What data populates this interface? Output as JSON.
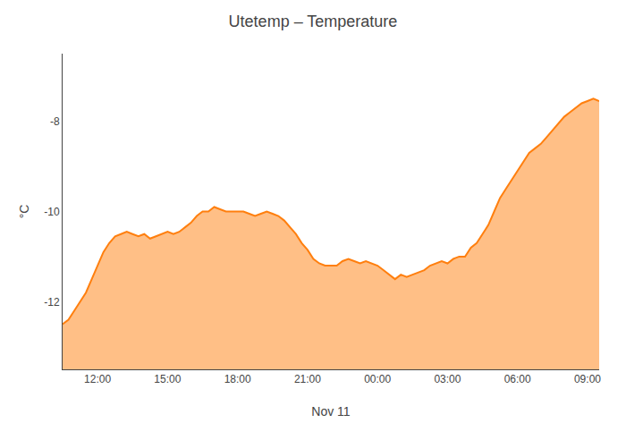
{
  "chart_data": {
    "type": "area",
    "title": "Utetemp – Temperature",
    "xlabel": "Nov 11",
    "ylabel": "°C",
    "x": [
      0.0,
      0.25,
      0.5,
      0.75,
      1.0,
      1.25,
      1.5,
      1.75,
      2.0,
      2.25,
      2.5,
      2.75,
      3.0,
      3.25,
      3.5,
      3.75,
      4.0,
      4.25,
      4.5,
      4.75,
      5.0,
      5.25,
      5.5,
      5.75,
      6.0,
      6.25,
      6.5,
      6.75,
      7.0,
      7.25,
      7.5,
      7.75,
      8.0,
      8.25,
      8.5,
      8.75,
      9.0,
      9.25,
      9.5,
      9.75,
      10.0,
      10.25,
      10.5,
      10.75,
      11.0,
      11.25,
      11.5,
      11.75,
      12.0,
      12.25,
      12.5,
      12.75,
      13.0,
      13.25,
      13.5,
      13.75,
      14.0,
      14.25,
      14.5,
      14.75,
      15.0,
      15.25,
      15.5,
      15.75,
      16.0,
      16.25,
      16.5,
      16.75,
      17.0,
      17.25,
      17.5,
      17.75,
      18.0,
      18.25,
      18.5,
      18.75,
      19.0,
      19.25,
      19.5,
      19.75,
      20.0,
      20.25,
      20.5,
      20.75,
      21.0,
      21.25,
      21.5,
      21.75,
      22.0,
      22.25,
      22.5,
      22.75,
      23.0
    ],
    "values": [
      -12.5,
      -12.4,
      -12.2,
      -12.0,
      -11.8,
      -11.5,
      -11.2,
      -10.9,
      -10.7,
      -10.55,
      -10.5,
      -10.45,
      -10.5,
      -10.55,
      -10.5,
      -10.6,
      -10.55,
      -10.5,
      -10.45,
      -10.5,
      -10.45,
      -10.35,
      -10.25,
      -10.1,
      -10.0,
      -10.0,
      -9.9,
      -9.95,
      -10.0,
      -10.0,
      -10.0,
      -10.0,
      -10.05,
      -10.1,
      -10.05,
      -10.0,
      -10.05,
      -10.1,
      -10.2,
      -10.35,
      -10.5,
      -10.7,
      -10.85,
      -11.05,
      -11.15,
      -11.2,
      -11.2,
      -11.2,
      -11.1,
      -11.05,
      -11.1,
      -11.15,
      -11.1,
      -11.15,
      -11.2,
      -11.3,
      -11.4,
      -11.5,
      -11.4,
      -11.45,
      -11.4,
      -11.35,
      -11.3,
      -11.2,
      -11.15,
      -11.1,
      -11.15,
      -11.05,
      -11.0,
      -11.0,
      -10.8,
      -10.7,
      -10.5,
      -10.3,
      -10.0,
      -9.7,
      -9.5,
      -9.3,
      -9.1,
      -8.9,
      -8.7,
      -8.6,
      -8.5,
      -8.35,
      -8.2,
      -8.05,
      -7.9,
      -7.8,
      -7.7,
      -7.6,
      -7.55,
      -7.5,
      -7.55
    ],
    "xlim": [
      0.0,
      23.0
    ],
    "xticks": [
      {
        "value": 1.5,
        "label": "12:00"
      },
      {
        "value": 4.5,
        "label": "15:00"
      },
      {
        "value": 7.5,
        "label": "18:00"
      },
      {
        "value": 10.5,
        "label": "21:00"
      },
      {
        "value": 13.5,
        "label": "00:00"
      },
      {
        "value": 16.5,
        "label": "03:00"
      },
      {
        "value": 19.5,
        "label": "06:00"
      },
      {
        "value": 22.5,
        "label": "09:00"
      }
    ],
    "ylim": [
      -13.5,
      -6.5
    ],
    "yticks": [
      -12,
      -10,
      -8
    ],
    "grid": false
  }
}
